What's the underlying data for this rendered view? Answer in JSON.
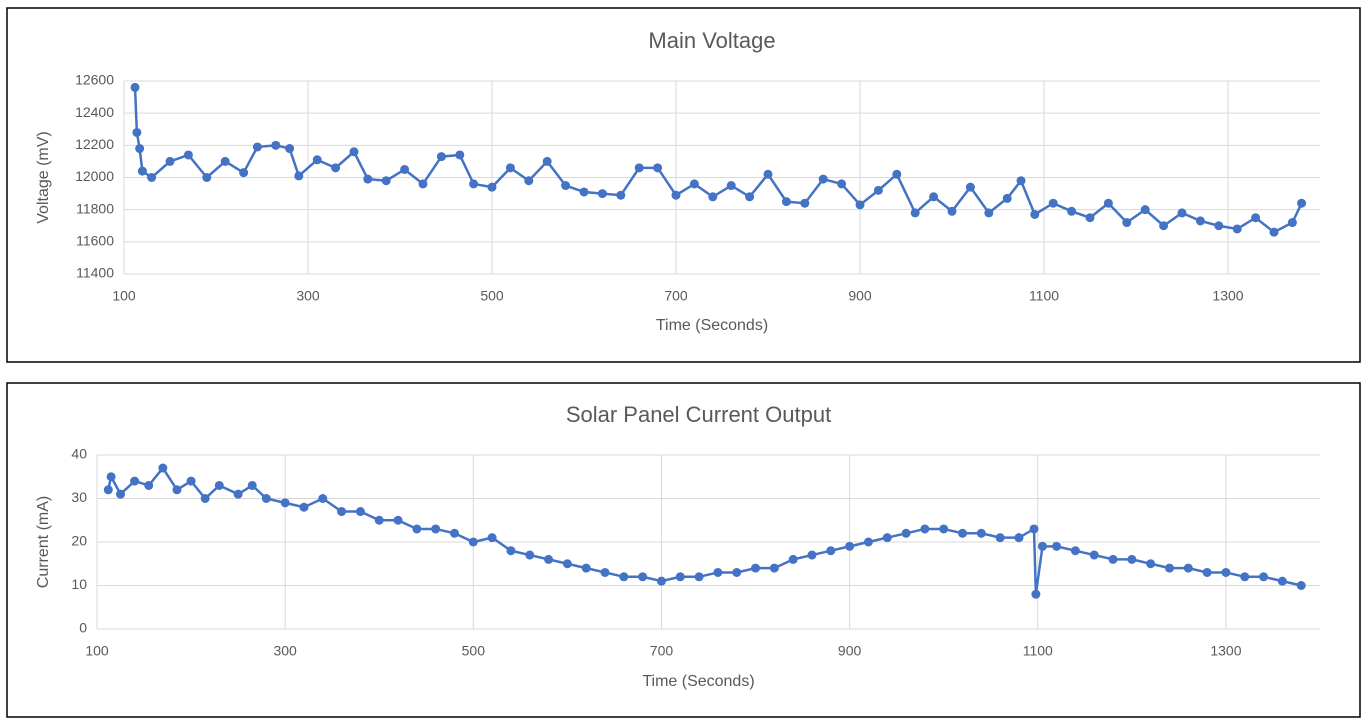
{
  "chart_data": [
    {
      "type": "line",
      "title": "Main Voltage",
      "x_label": "Time (Seconds)",
      "y_label": "Voltage (mV)",
      "xlim": [
        100,
        1400
      ],
      "xticks": [
        100,
        300,
        500,
        700,
        900,
        1100,
        1300
      ],
      "ylim": [
        11400,
        12600
      ],
      "yticks": [
        11400,
        11600,
        11800,
        12000,
        12200,
        12400,
        12600
      ],
      "grid": true,
      "x": [
        112,
        114,
        117,
        120,
        130,
        150,
        170,
        190,
        210,
        230,
        245,
        265,
        280,
        290,
        310,
        330,
        350,
        365,
        385,
        405,
        425,
        445,
        465,
        480,
        500,
        520,
        540,
        560,
        580,
        600,
        620,
        640,
        660,
        680,
        700,
        720,
        740,
        760,
        780,
        800,
        820,
        840,
        860,
        880,
        900,
        920,
        940,
        960,
        980,
        1000,
        1020,
        1040,
        1060,
        1075,
        1090,
        1110,
        1130,
        1150,
        1170,
        1190,
        1210,
        1230,
        1250,
        1270,
        1290,
        1310,
        1330,
        1350,
        1370,
        1380
      ],
      "series": [
        {
          "name": "Voltage",
          "color": "#4472c4",
          "values": [
            12560,
            12280,
            12180,
            12040,
            12000,
            12100,
            12140,
            12000,
            12100,
            12030,
            12190,
            12200,
            12180,
            12010,
            12110,
            12060,
            12160,
            11990,
            11980,
            12050,
            11960,
            12130,
            12140,
            11960,
            11940,
            12060,
            11980,
            12100,
            11950,
            11910,
            11900,
            11890,
            12060,
            12060,
            11890,
            11960,
            11880,
            11950,
            11880,
            12020,
            11850,
            11840,
            11990,
            11960,
            11830,
            11920,
            12020,
            11780,
            11880,
            11790,
            11940,
            11780,
            11870,
            11980,
            11770,
            11840,
            11790,
            11750,
            11840,
            11720,
            11800,
            11700,
            11780,
            11730,
            11700,
            11680,
            11750,
            11660,
            11720,
            11840
          ]
        }
      ]
    },
    {
      "type": "line",
      "title": "Solar Panel Current Output",
      "x_label": "Time (Seconds)",
      "y_label": "Current (mA)",
      "xlim": [
        100,
        1400
      ],
      "xticks": [
        100,
        300,
        500,
        700,
        900,
        1100,
        1300
      ],
      "ylim": [
        0,
        40
      ],
      "yticks": [
        0,
        10,
        20,
        30,
        40
      ],
      "grid": true,
      "x": [
        112,
        115,
        125,
        140,
        155,
        170,
        185,
        200,
        215,
        230,
        250,
        265,
        280,
        300,
        320,
        340,
        360,
        380,
        400,
        420,
        440,
        460,
        480,
        500,
        520,
        540,
        560,
        580,
        600,
        620,
        640,
        660,
        680,
        700,
        720,
        740,
        760,
        780,
        800,
        820,
        840,
        860,
        880,
        900,
        920,
        940,
        960,
        980,
        1000,
        1020,
        1040,
        1060,
        1080,
        1096,
        1098,
        1105,
        1120,
        1140,
        1160,
        1180,
        1200,
        1220,
        1240,
        1260,
        1280,
        1300,
        1320,
        1340,
        1360,
        1380
      ],
      "series": [
        {
          "name": "Current",
          "color": "#4472c4",
          "values": [
            32,
            35,
            31,
            34,
            33,
            37,
            32,
            34,
            30,
            33,
            31,
            33,
            30,
            29,
            28,
            30,
            27,
            27,
            25,
            25,
            23,
            23,
            22,
            20,
            21,
            18,
            17,
            16,
            15,
            14,
            13,
            12,
            12,
            11,
            12,
            12,
            13,
            13,
            14,
            14,
            16,
            17,
            18,
            19,
            20,
            21,
            22,
            23,
            23,
            22,
            22,
            21,
            21,
            23,
            8,
            19,
            19,
            18,
            17,
            16,
            16,
            15,
            14,
            14,
            13,
            13,
            12,
            12,
            11,
            10
          ]
        }
      ]
    }
  ]
}
